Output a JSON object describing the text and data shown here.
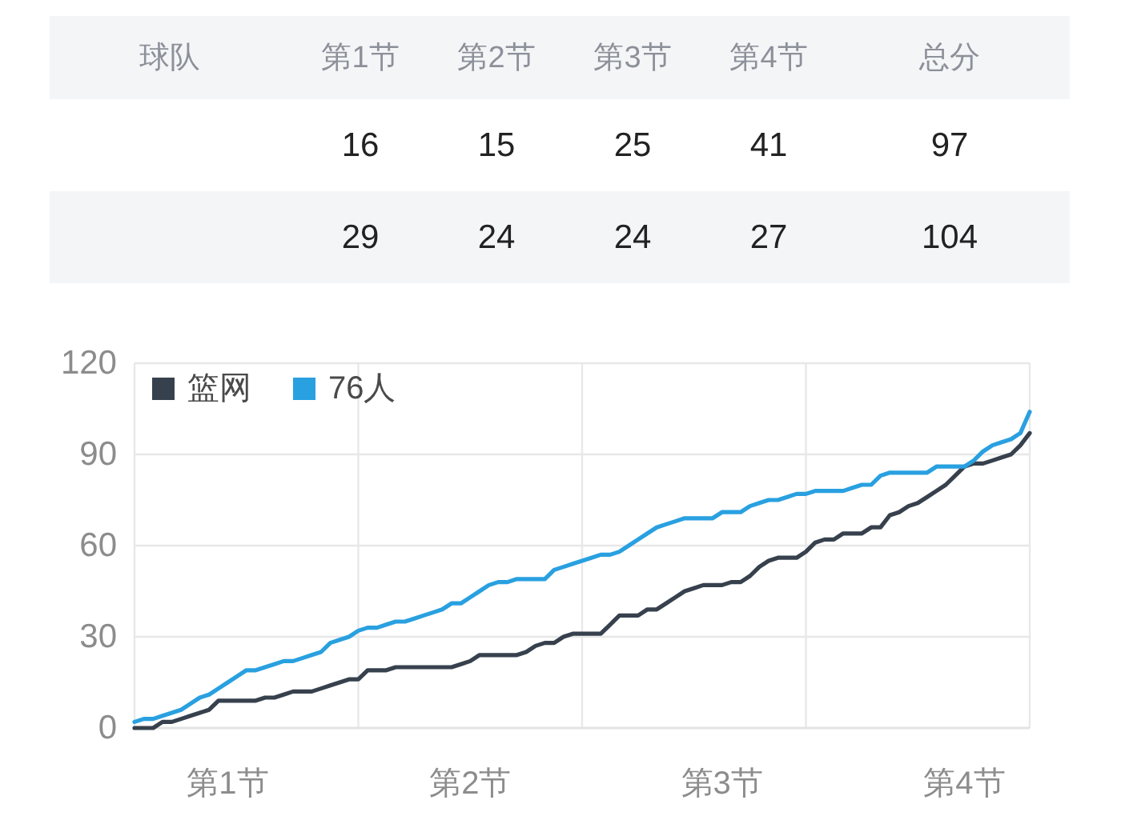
{
  "chart_data": [
    {
      "type": "other",
      "categories": [
        "球队",
        "第1节",
        "第2节",
        "第3节",
        "第4节",
        "总分"
      ],
      "series": [
        {
          "values": [
            null,
            16,
            15,
            25,
            41,
            97
          ]
        },
        {
          "values": [
            null,
            29,
            24,
            24,
            27,
            104
          ]
        }
      ],
      "data_labels": true
    },
    {
      "type": "line",
      "categories": [
        null,
        null,
        null,
        null,
        null,
        null,
        null,
        null,
        null,
        null,
        "第1节",
        null,
        null,
        null,
        null,
        null,
        null,
        null,
        null,
        null,
        null,
        null,
        null,
        null,
        null,
        null,
        null,
        null,
        null,
        null,
        null,
        null,
        null,
        null,
        null,
        null,
        "第2节",
        null,
        null,
        null,
        null,
        null,
        null,
        null,
        null,
        null,
        null,
        null,
        null,
        null,
        null,
        null,
        null,
        null,
        null,
        null,
        null,
        null,
        null,
        null,
        null,
        null,
        null,
        "第3节",
        null,
        null,
        null,
        null,
        null,
        null,
        null,
        null,
        null,
        null,
        null,
        null,
        null,
        null,
        null,
        null,
        null,
        null,
        null,
        null,
        null,
        null,
        null,
        null,
        null,
        "第4节",
        null,
        null,
        null,
        null,
        null,
        null,
        null
      ],
      "ylim": [
        0,
        120
      ],
      "yticks": [
        0,
        30,
        60,
        90,
        120
      ],
      "grid": true,
      "legend": "top left",
      "line_style": "solid",
      "series": [
        {
          "name": "篮网",
          "color": "#37414d",
          "values": [
            0,
            0,
            0,
            2,
            2,
            3,
            4,
            5,
            6,
            9,
            9,
            9,
            9,
            9,
            10,
            10,
            11,
            12,
            12,
            12,
            13,
            14,
            15,
            16,
            16,
            19,
            19,
            19,
            20,
            20,
            20,
            20,
            20,
            20,
            20,
            21,
            22,
            24,
            24,
            24,
            24,
            24,
            25,
            27,
            28,
            28,
            30,
            31,
            31,
            31,
            31,
            34,
            37,
            37,
            37,
            39,
            39,
            41,
            43,
            45,
            46,
            47,
            47,
            47,
            48,
            48,
            50,
            53,
            55,
            56,
            56,
            56,
            58,
            61,
            62,
            62,
            64,
            64,
            64,
            66,
            66,
            70,
            71,
            73,
            74,
            76,
            78,
            80,
            83,
            86,
            87,
            87,
            88,
            89,
            90,
            93,
            97
          ]
        },
        {
          "name": "76人",
          "color": "#29a0e0",
          "values": [
            2,
            3,
            3,
            4,
            5,
            6,
            8,
            10,
            11,
            13,
            15,
            17,
            19,
            19,
            20,
            21,
            22,
            22,
            23,
            24,
            25,
            28,
            29,
            30,
            32,
            33,
            33,
            34,
            35,
            35,
            36,
            37,
            38,
            39,
            41,
            41,
            43,
            45,
            47,
            48,
            48,
            49,
            49,
            49,
            49,
            52,
            53,
            54,
            55,
            56,
            57,
            57,
            58,
            60,
            62,
            64,
            66,
            67,
            68,
            69,
            69,
            69,
            69,
            71,
            71,
            71,
            73,
            74,
            75,
            75,
            76,
            77,
            77,
            78,
            78,
            78,
            78,
            79,
            80,
            80,
            83,
            84,
            84,
            84,
            84,
            84,
            86,
            86,
            86,
            86,
            88,
            91,
            93,
            94,
            95,
            97,
            104
          ]
        }
      ]
    }
  ]
}
